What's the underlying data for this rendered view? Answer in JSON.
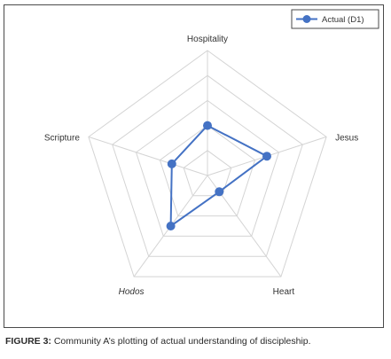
{
  "chart_data": {
    "type": "radar",
    "categories": [
      "Hospitality",
      "Jesus",
      "Heart",
      "Hodos",
      "Scripture"
    ],
    "series": [
      {
        "name": "Actual (D1)",
        "values": [
          2,
          2.5,
          0.8,
          2.5,
          1.5
        ],
        "color": "#4472C4"
      }
    ],
    "rlim": [
      0,
      5
    ],
    "grid": true,
    "legend_position": "top-right",
    "italic_categories": [
      "Hodos"
    ]
  },
  "caption": {
    "label": "FIGURE 3:",
    "text": " Community A’s plotting of actual understanding of discipleship."
  }
}
